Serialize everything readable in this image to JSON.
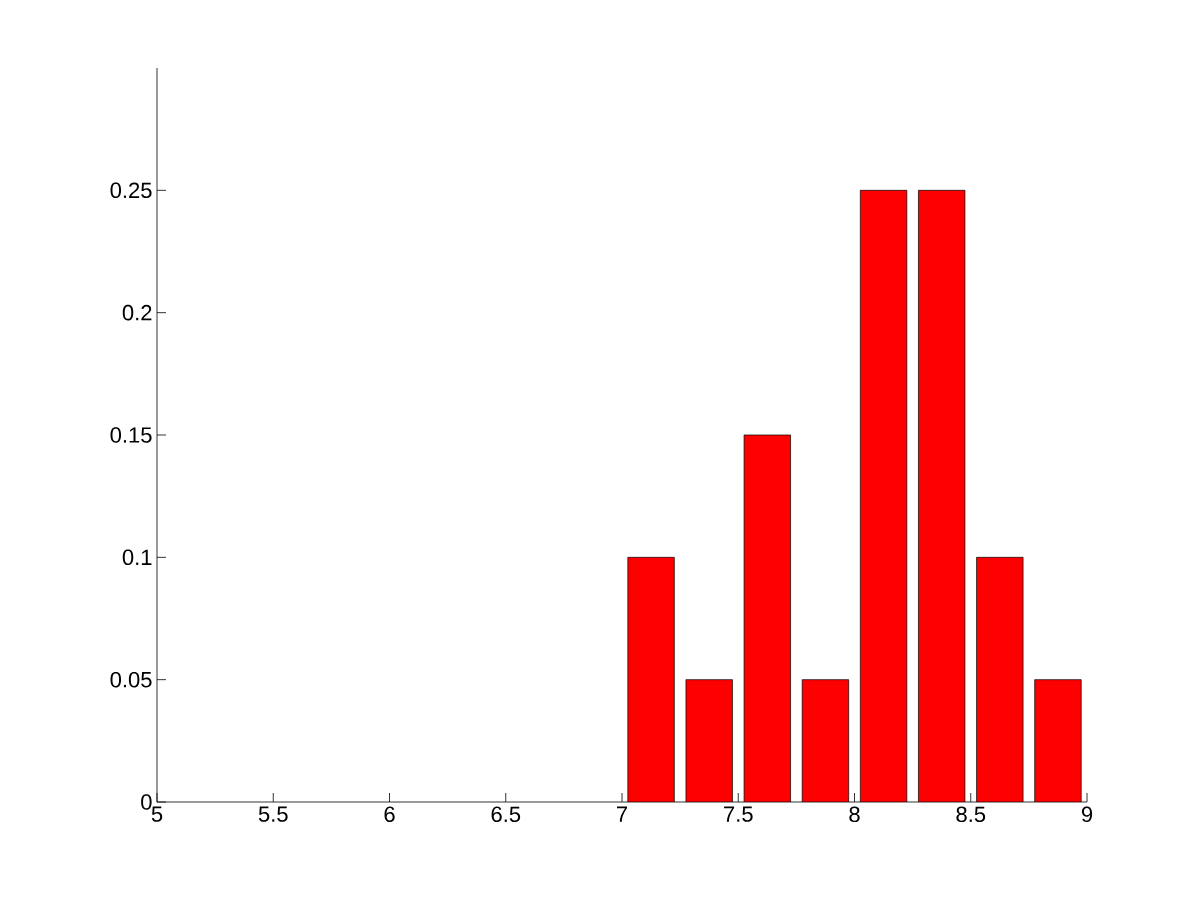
{
  "chart_data": {
    "type": "bar",
    "x": [
      7.125,
      7.375,
      7.625,
      7.875,
      8.125,
      8.375,
      8.625,
      8.875
    ],
    "values": [
      0.1,
      0.05,
      0.15,
      0.05,
      0.25,
      0.25,
      0.1,
      0.05
    ],
    "color": "#ff0000",
    "xlim": [
      5,
      9
    ],
    "ylim": [
      0,
      0.3
    ],
    "xticks": [
      5,
      5.5,
      6,
      6.5,
      7,
      7.5,
      8,
      8.5,
      9
    ],
    "yticks": [
      0,
      0.05,
      0.1,
      0.15,
      0.2,
      0.25
    ]
  }
}
